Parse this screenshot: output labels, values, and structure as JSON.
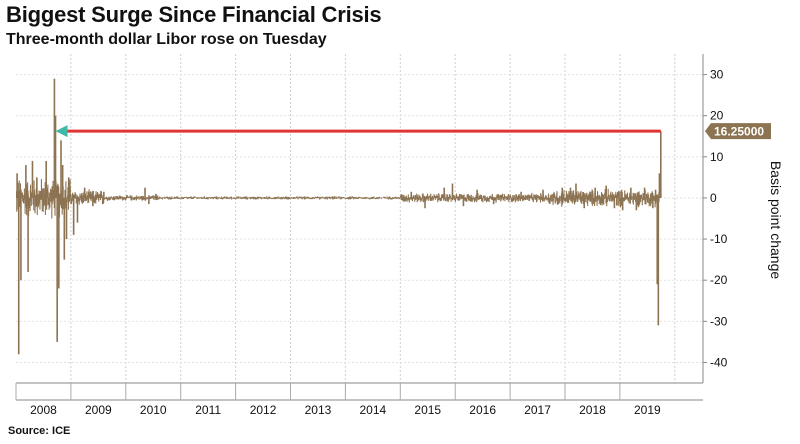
{
  "header": {
    "title": "Biggest Surge Since Financial Crisis",
    "subtitle": "Three-month dollar Libor rose on Tuesday"
  },
  "footer": {
    "source": "Source: ICE"
  },
  "colors": {
    "series": "#8c7352",
    "arrow": "#e03535",
    "arrow_head": "#3fb9a8",
    "last_label_bg": "#8c7352"
  },
  "chart_data": {
    "type": "bar",
    "title": "Biggest Surge Since Financial Crisis",
    "subtitle": "Three-month dollar Libor rose on Tuesday",
    "xlabel": "",
    "ylabel": "Basis point change",
    "ylim": [
      -45,
      35
    ],
    "yticks": [
      30,
      20,
      10,
      0,
      -10,
      -20,
      -30,
      -40
    ],
    "ytick_labels": [
      "30",
      "20",
      "10",
      "0",
      "-10",
      "-20",
      "-30",
      "-40"
    ],
    "x_categories": [
      "2008",
      "2009",
      "2010",
      "2011",
      "2012",
      "2013",
      "2014",
      "2015",
      "2016",
      "2017",
      "2018",
      "2019"
    ],
    "y_axis_side": "right",
    "grid": true,
    "last_value": 16.25,
    "last_value_label": "16.25000",
    "spikes": [
      {
        "date": 2008.02,
        "value": 6.0
      },
      {
        "date": 2008.05,
        "value": -38.0
      },
      {
        "date": 2008.09,
        "value": -20.0
      },
      {
        "date": 2008.18,
        "value": 8.0
      },
      {
        "date": 2008.22,
        "value": -18.0
      },
      {
        "date": 2008.3,
        "value": 9.0
      },
      {
        "date": 2008.38,
        "value": 5.0
      },
      {
        "date": 2008.55,
        "value": 9.0
      },
      {
        "date": 2008.7,
        "value": 29.0
      },
      {
        "date": 2008.72,
        "value": 20.0
      },
      {
        "date": 2008.75,
        "value": -35.0
      },
      {
        "date": 2008.78,
        "value": -22.0
      },
      {
        "date": 2008.82,
        "value": 14.0
      },
      {
        "date": 2008.85,
        "value": 8.0
      },
      {
        "date": 2008.88,
        "value": -15.0
      },
      {
        "date": 2008.92,
        "value": -10.0
      },
      {
        "date": 2008.96,
        "value": 5.0
      },
      {
        "date": 2009.05,
        "value": -9.0
      },
      {
        "date": 2009.12,
        "value": -6.0
      },
      {
        "date": 2009.25,
        "value": 2.5
      },
      {
        "date": 2009.4,
        "value": -2.0
      },
      {
        "date": 2009.6,
        "value": 1.5
      },
      {
        "date": 2010.35,
        "value": 2.5
      },
      {
        "date": 2010.42,
        "value": -1.5
      },
      {
        "date": 2010.55,
        "value": 1.0
      },
      {
        "date": 2015.2,
        "value": 1.5
      },
      {
        "date": 2015.45,
        "value": -2.5
      },
      {
        "date": 2015.8,
        "value": 2.5
      },
      {
        "date": 2015.95,
        "value": 3.5
      },
      {
        "date": 2016.15,
        "value": -2.0
      },
      {
        "date": 2016.4,
        "value": 2.0
      },
      {
        "date": 2016.7,
        "value": -1.5
      },
      {
        "date": 2017.2,
        "value": 1.5
      },
      {
        "date": 2017.6,
        "value": 2.0
      },
      {
        "date": 2017.95,
        "value": 2.5
      },
      {
        "date": 2018.1,
        "value": 2.5
      },
      {
        "date": 2018.2,
        "value": 3.5
      },
      {
        "date": 2018.35,
        "value": -2.5
      },
      {
        "date": 2018.55,
        "value": 2.5
      },
      {
        "date": 2018.75,
        "value": 3.0
      },
      {
        "date": 2018.9,
        "value": -2.5
      },
      {
        "date": 2019.05,
        "value": -3.0
      },
      {
        "date": 2019.2,
        "value": 2.5
      },
      {
        "date": 2019.3,
        "value": -3.0
      },
      {
        "date": 2019.45,
        "value": 2.5
      },
      {
        "date": 2019.6,
        "value": -2.5
      },
      {
        "date": 2019.65,
        "value": 2.0
      },
      {
        "date": 2019.68,
        "value": -21.0
      },
      {
        "date": 2019.7,
        "value": -31.0
      },
      {
        "date": 2019.72,
        "value": 6.0
      },
      {
        "date": 2019.745,
        "value": 16.25
      }
    ],
    "annotation": {
      "type": "arrow",
      "from_date": 2019.745,
      "to_date": 2008.72,
      "value": 16.25
    }
  }
}
